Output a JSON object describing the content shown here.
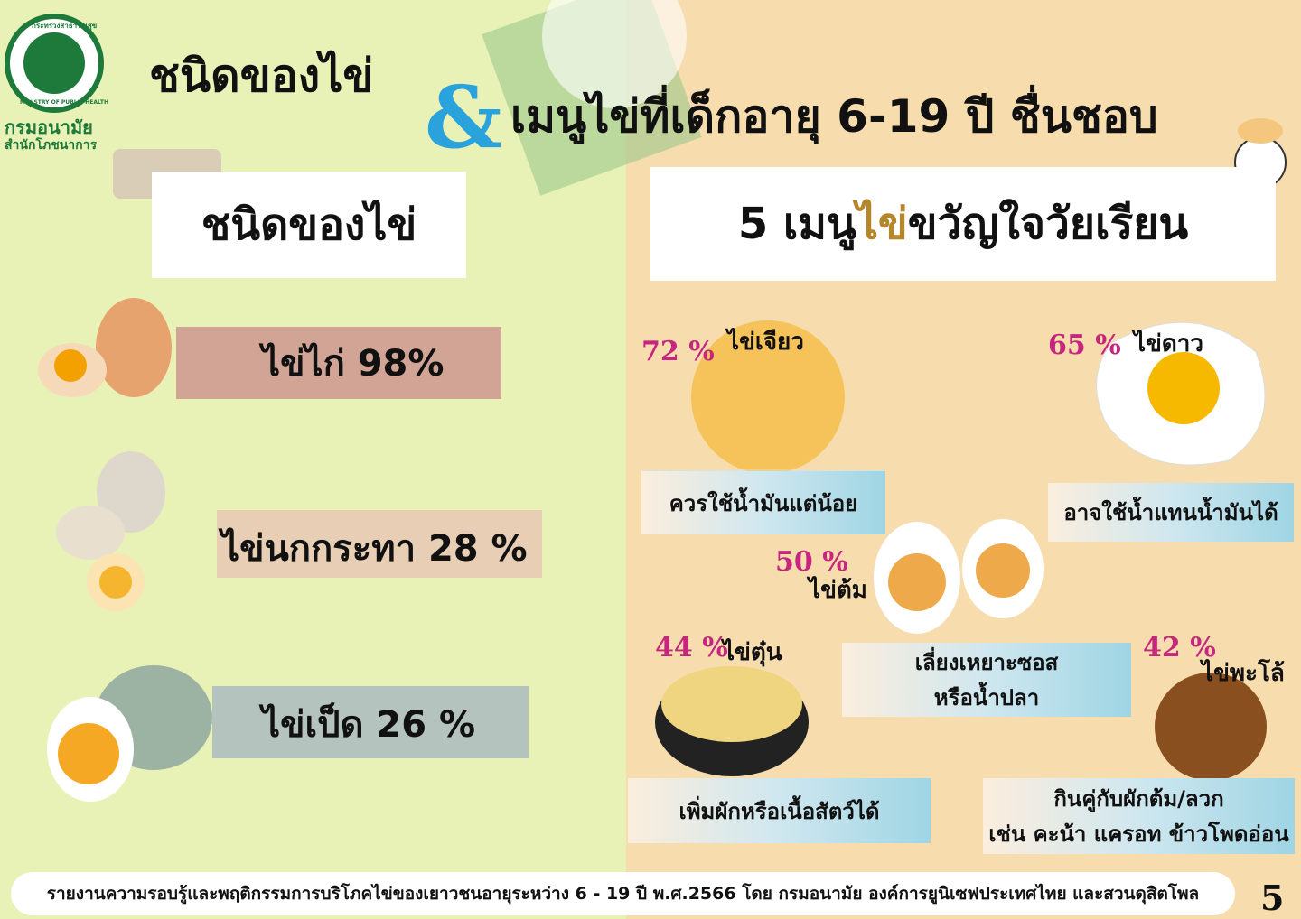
{
  "header": {
    "logo_text": "กระทรวงสาธารณสุข",
    "logo_sub": "MINISTRY OF PUBLIC HEALTH",
    "dept": "กรมอนามัย",
    "bureau": "สำนักโภชนาการ",
    "title_left": "ชนิดของไข่",
    "ampersand": "&",
    "title_right": "เมนูไข่ที่เด็กอายุ 6-19 ปี ชื่นชอบ"
  },
  "left": {
    "heading": "ชนิดของไข่",
    "items": [
      {
        "label": "ไข่ไก่ 98%"
      },
      {
        "label": "ไข่นกกระทา 28 %"
      },
      {
        "label": "ไข่เป็ด 26 %"
      }
    ]
  },
  "right": {
    "heading_pre": "5 เมนู",
    "heading_hi": "ไข่",
    "heading_post": "ขวัญใจวัยเรียน",
    "menus": [
      {
        "percent": "72 %",
        "name": "ไข่เจียว",
        "tip": [
          "ควรใช้น้ำมันแต่น้อย"
        ]
      },
      {
        "percent": "65 %",
        "name": "ไข่ดาว",
        "tip": [
          "อาจใช้น้ำแทนน้ำมันได้"
        ]
      },
      {
        "percent": "50 %",
        "name": "ไข่ต้ม",
        "tip": [
          "เลี่ยงเหยาะซอส",
          "หรือน้ำปลา"
        ]
      },
      {
        "percent": "44 %",
        "name": "ไข่ตุ๋น",
        "tip": [
          "เพิ่มผักหรือเนื้อสัตว์ได้"
        ]
      },
      {
        "percent": "42 %",
        "name": "ไข่พะโล้",
        "tip": [
          "กินคู่กับผักต้ม/ลวก",
          "เช่น คะน้า แครอท ข้าวโพดอ่อน"
        ]
      }
    ]
  },
  "footer": {
    "source": "รายงานความรอบรู้และพฤติกรรมการบริโภคไข่ของเยาวชนอายุระหว่าง 6 - 19 ปี พ.ศ.2566 โดย กรมอนามัย องค์การยูนิเซฟประเทศไทย และสวนดุสิตโพล",
    "page": "5"
  }
}
